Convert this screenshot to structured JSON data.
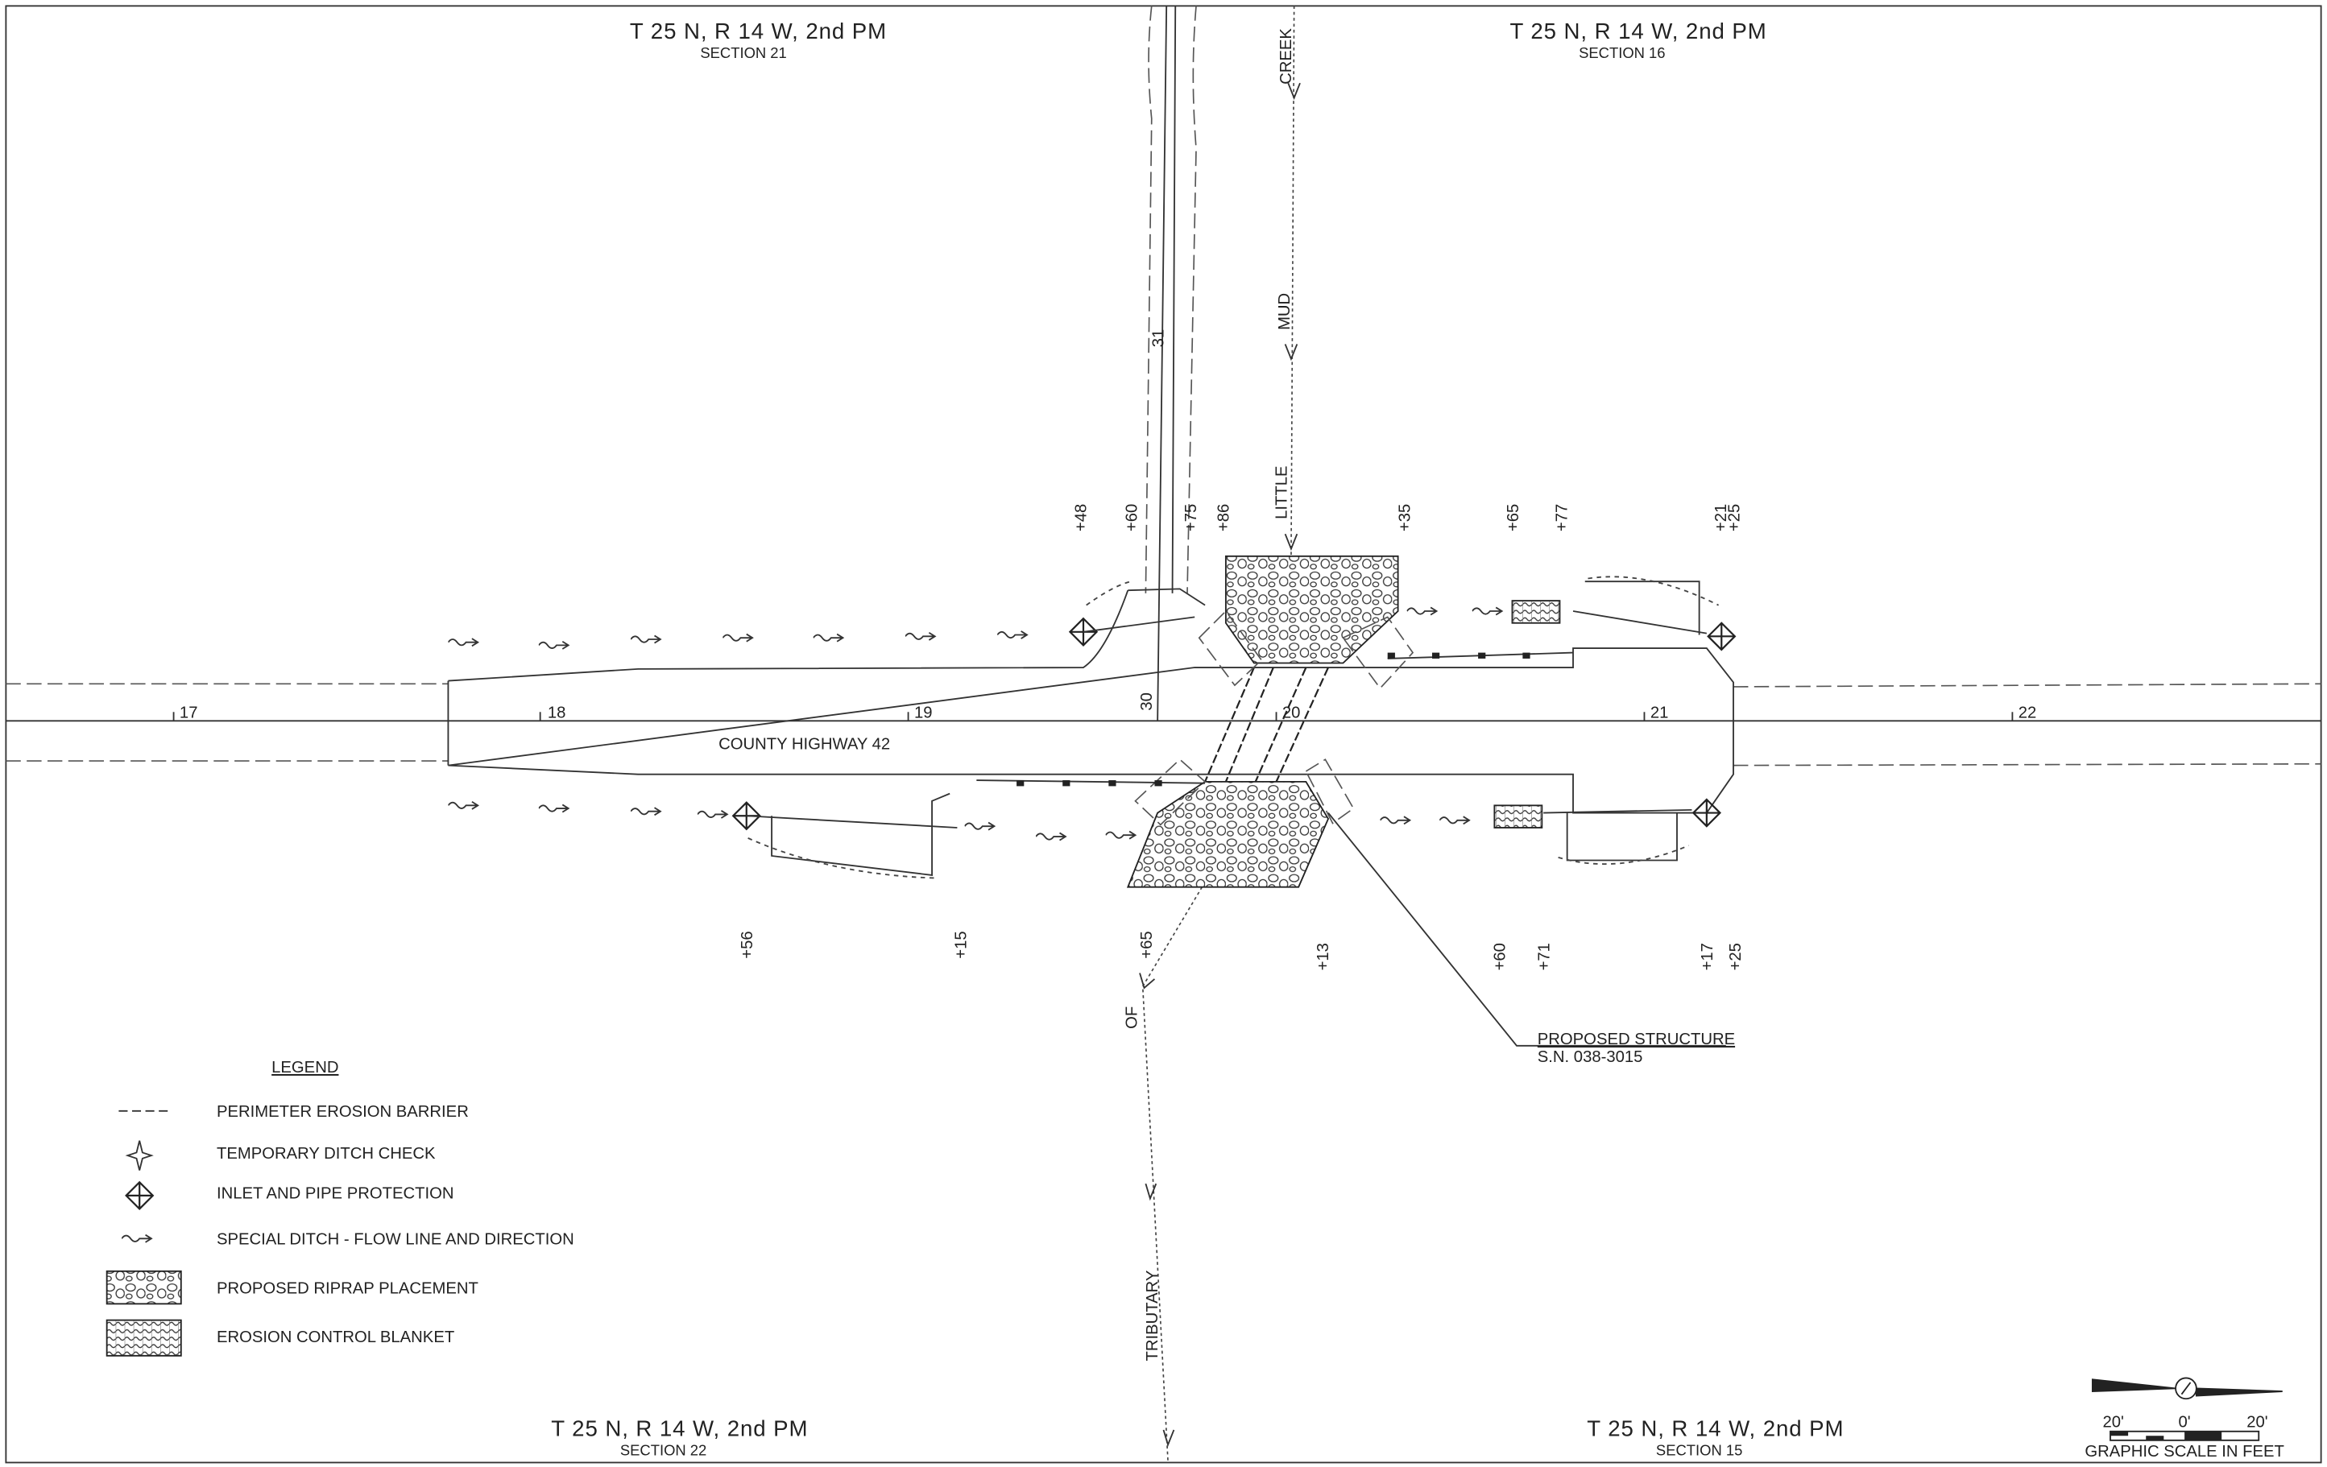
{
  "sections": [
    {
      "township": "T 25 N, R 14 W, 2nd PM",
      "section": "SECTION 21"
    },
    {
      "township": "T 25 N, R 14 W, 2nd PM",
      "section": "SECTION 16"
    },
    {
      "township": "T 25 N, R 14 W, 2nd PM",
      "section": "SECTION 22"
    },
    {
      "township": "T 25 N, R 14 W, 2nd PM",
      "section": "SECTION 15"
    }
  ],
  "road": {
    "name": "COUNTY HIGHWAY 42",
    "stations": [
      "17",
      "18",
      "19",
      "20",
      "21",
      "22"
    ],
    "side_road": [
      "30",
      "31"
    ]
  },
  "offsets_north": [
    "+48",
    "+60",
    "+75",
    "+86",
    "+35",
    "+65",
    "+77",
    "+21",
    "+25"
  ],
  "offsets_south": [
    "+56",
    "+15",
    "+65",
    "+13",
    "+60",
    "+71",
    "+17",
    "+25"
  ],
  "streams": {
    "main": [
      "CREEK",
      "MUD",
      "LITTLE"
    ],
    "tributary": [
      "OF",
      "TRIBUTARY"
    ]
  },
  "structure": {
    "label": "PROPOSED STRUCTURE",
    "number": "S.N. 038-3015"
  },
  "legend": {
    "title": "LEGEND",
    "items": [
      "PERIMETER EROSION BARRIER",
      "TEMPORARY DITCH CHECK",
      "INLET AND PIPE PROTECTION",
      "SPECIAL DITCH - FLOW LINE AND DIRECTION",
      "PROPOSED RIPRAP PLACEMENT",
      "EROSION CONTROL BLANKET"
    ]
  },
  "scale": {
    "ticks": [
      "20'",
      "0'",
      "20'"
    ],
    "caption": "GRAPHIC SCALE IN FEET"
  }
}
